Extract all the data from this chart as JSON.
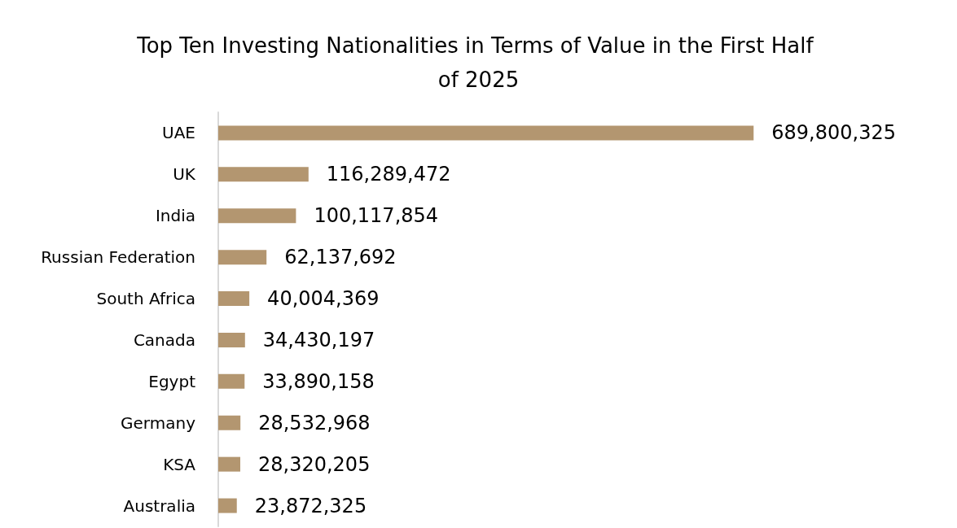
{
  "chart_data": {
    "type": "bar",
    "orientation": "horizontal",
    "title": "Top Ten Investing Nationalities in Terms of Value in the First Half of 2025",
    "categories": [
      "UAE",
      "UK",
      "India",
      "Russian Federation",
      "South Africa",
      "Canada",
      "Egypt",
      "Germany",
      "KSA",
      "Australia"
    ],
    "values": [
      689800325,
      116289472,
      100117854,
      62137692,
      40004369,
      34430197,
      33890158,
      28532968,
      28320205,
      23872325
    ],
    "value_labels": [
      "689,800,325",
      "116,289,472",
      "100,117,854",
      "62,137,692",
      "40,004,369",
      "34,430,197",
      "33,890,158",
      "28,532,968",
      "28,320,205",
      "23,872,325"
    ],
    "color": "#b39670"
  }
}
